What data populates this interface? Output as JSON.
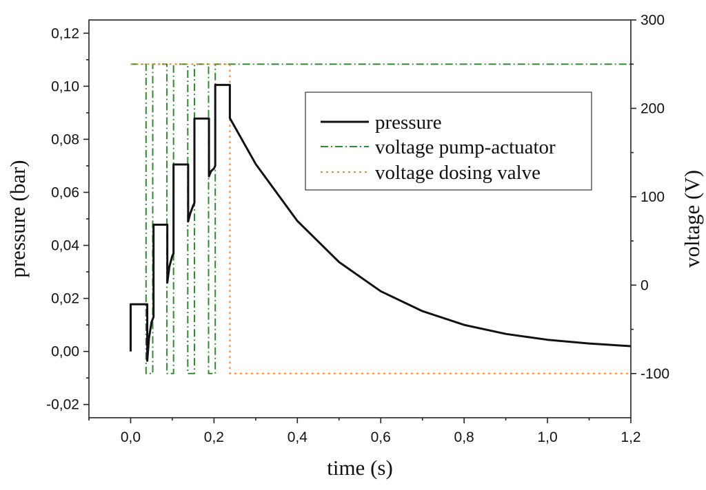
{
  "chart_data": {
    "type": "line",
    "title": "",
    "xlabel": "time (s)",
    "ylabel": "pressure (bar)",
    "y2label": "voltage (V)",
    "xlim": [
      -0.1,
      1.2
    ],
    "ylim": [
      -0.025,
      0.125
    ],
    "y2lim": [
      -150,
      300
    ],
    "x_ticks": [
      0.0,
      0.2,
      0.4,
      0.6,
      0.8,
      1.0,
      1.2
    ],
    "x_tick_labels": [
      "0,0",
      "0,2",
      "0,4",
      "0,6",
      "0,8",
      "1,0",
      "1,2"
    ],
    "y_ticks": [
      -0.02,
      0.0,
      0.02,
      0.04,
      0.06,
      0.08,
      0.1,
      0.12
    ],
    "y_tick_labels": [
      "-0,02",
      "0,00",
      "0,02",
      "0,04",
      "0,06",
      "0,08",
      "0,10",
      "0,12"
    ],
    "y2_ticks": [
      -100,
      0,
      100,
      200,
      300
    ],
    "y2_tick_labels": [
      "-100",
      "0",
      "100",
      "200",
      "300"
    ],
    "legend_position": "upper-right",
    "series": [
      {
        "name": "pressure",
        "axis": "left",
        "color": "#111111",
        "style": "solid",
        "points": [
          [
            0.0,
            0.0
          ],
          [
            0.0,
            0.0178
          ],
          [
            0.04,
            0.0178
          ],
          [
            0.04,
            -0.0035
          ],
          [
            0.044,
            0.005
          ],
          [
            0.05,
            0.011
          ],
          [
            0.055,
            0.013
          ],
          [
            0.055,
            0.0478
          ],
          [
            0.088,
            0.0478
          ],
          [
            0.088,
            0.026
          ],
          [
            0.093,
            0.032
          ],
          [
            0.1,
            0.036
          ],
          [
            0.103,
            0.037
          ],
          [
            0.103,
            0.0705
          ],
          [
            0.138,
            0.0705
          ],
          [
            0.138,
            0.049
          ],
          [
            0.143,
            0.052
          ],
          [
            0.15,
            0.055
          ],
          [
            0.153,
            0.056
          ],
          [
            0.153,
            0.0878
          ],
          [
            0.188,
            0.0878
          ],
          [
            0.188,
            0.066
          ],
          [
            0.193,
            0.068
          ],
          [
            0.2,
            0.069
          ],
          [
            0.203,
            0.07
          ],
          [
            0.203,
            0.1005
          ],
          [
            0.238,
            0.1005
          ],
          [
            0.238,
            0.088
          ],
          [
            0.3,
            0.0707
          ],
          [
            0.4,
            0.0492
          ],
          [
            0.5,
            0.0337
          ],
          [
            0.6,
            0.0227
          ],
          [
            0.7,
            0.0152
          ],
          [
            0.8,
            0.01
          ],
          [
            0.9,
            0.0066
          ],
          [
            1.0,
            0.0044
          ],
          [
            1.1,
            0.003
          ],
          [
            1.2,
            0.002
          ]
        ]
      },
      {
        "name": "voltage pump-actuator",
        "axis": "right",
        "color": "#2e8b2e",
        "style": "dash-dot",
        "points": [
          [
            0.0,
            250
          ],
          [
            0.037,
            250
          ],
          [
            0.037,
            -100
          ],
          [
            0.053,
            -100
          ],
          [
            0.053,
            250
          ],
          [
            0.087,
            250
          ],
          [
            0.087,
            -100
          ],
          [
            0.103,
            -100
          ],
          [
            0.103,
            250
          ],
          [
            0.137,
            250
          ],
          [
            0.137,
            -100
          ],
          [
            0.153,
            -100
          ],
          [
            0.153,
            250
          ],
          [
            0.187,
            250
          ],
          [
            0.187,
            -100
          ],
          [
            0.203,
            -100
          ],
          [
            0.203,
            250
          ],
          [
            1.2,
            250
          ]
        ]
      },
      {
        "name": "voltage dosing valve",
        "axis": "right",
        "color": "#f08a24",
        "style": "dotted",
        "points": [
          [
            0.0,
            250
          ],
          [
            0.238,
            250
          ],
          [
            0.238,
            -100
          ],
          [
            1.2,
            -100
          ]
        ]
      }
    ]
  }
}
